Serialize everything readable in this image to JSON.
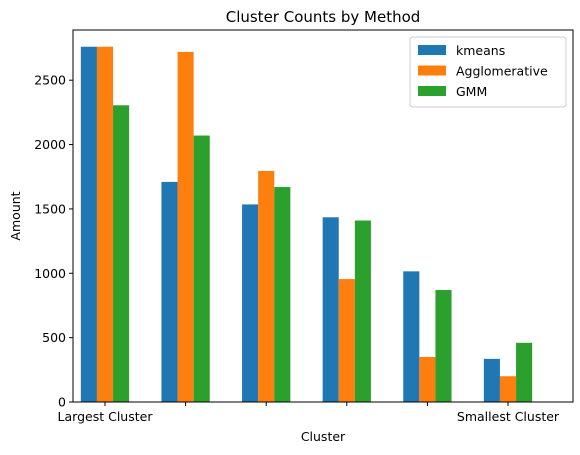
{
  "chart_data": {
    "type": "bar",
    "title": "Cluster Counts by Method",
    "xlabel": "Cluster",
    "ylabel": "Amount",
    "categories": [
      "Largest Cluster",
      "",
      "",
      "",
      "",
      "Smallest Cluster"
    ],
    "series": [
      {
        "name": "kmeans",
        "color": "#1f77b4",
        "values": [
          2760,
          1710,
          1535,
          1435,
          1015,
          335
        ]
      },
      {
        "name": "Agglomerative",
        "color": "#ff7f0e",
        "values": [
          2760,
          2720,
          1795,
          955,
          350,
          200
        ]
      },
      {
        "name": "GMM",
        "color": "#2ca02c",
        "values": [
          2305,
          2070,
          1670,
          1410,
          870,
          460
        ]
      }
    ],
    "ylim": [
      0,
      2890
    ],
    "yticks": [
      0,
      500,
      1000,
      1500,
      2000,
      2500
    ],
    "grid": false,
    "legend_position": "top-right"
  }
}
